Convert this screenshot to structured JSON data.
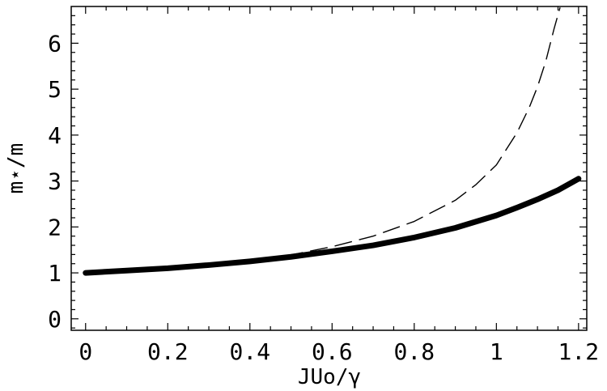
{
  "chart_data": {
    "type": "line",
    "title": "",
    "xlabel": "JUo/γ",
    "ylabel": "m⋆/m",
    "xlim": [
      -0.035,
      1.22
    ],
    "ylim": [
      -0.25,
      6.8
    ],
    "x_ticks": [
      {
        "value": 0,
        "label": "0"
      },
      {
        "value": 0.2,
        "label": "0.2"
      },
      {
        "value": 0.4,
        "label": "0.4"
      },
      {
        "value": 0.6,
        "label": "0.6"
      },
      {
        "value": 0.8,
        "label": "0.8"
      },
      {
        "value": 1.0,
        "label": "1"
      },
      {
        "value": 1.2,
        "label": "1.2"
      }
    ],
    "y_ticks": [
      {
        "value": 0,
        "label": "0"
      },
      {
        "value": 1,
        "label": "1"
      },
      {
        "value": 2,
        "label": "2"
      },
      {
        "value": 3,
        "label": "3"
      },
      {
        "value": 4,
        "label": "4"
      },
      {
        "value": 5,
        "label": "5"
      },
      {
        "value": 6,
        "label": "6"
      }
    ],
    "grid": false,
    "series": [
      {
        "style": "solid-thick",
        "color": "#000000",
        "x": [
          0,
          0.1,
          0.2,
          0.3,
          0.4,
          0.5,
          0.6,
          0.7,
          0.8,
          0.9,
          1.0,
          1.05,
          1.1,
          1.15,
          1.2
        ],
        "y": [
          1.0,
          1.05,
          1.1,
          1.17,
          1.25,
          1.35,
          1.47,
          1.6,
          1.77,
          1.98,
          2.25,
          2.42,
          2.6,
          2.8,
          3.05
        ]
      },
      {
        "style": "dashed-thin",
        "color": "#000000",
        "x": [
          0,
          0.1,
          0.2,
          0.3,
          0.4,
          0.5,
          0.6,
          0.7,
          0.8,
          0.9,
          0.95,
          1.0,
          1.05,
          1.08,
          1.1,
          1.12,
          1.14,
          1.155
        ],
        "y": [
          1.0,
          1.05,
          1.1,
          1.17,
          1.26,
          1.39,
          1.57,
          1.8,
          2.12,
          2.58,
          2.92,
          3.35,
          4.05,
          4.6,
          5.05,
          5.6,
          6.3,
          6.78
        ]
      }
    ]
  }
}
